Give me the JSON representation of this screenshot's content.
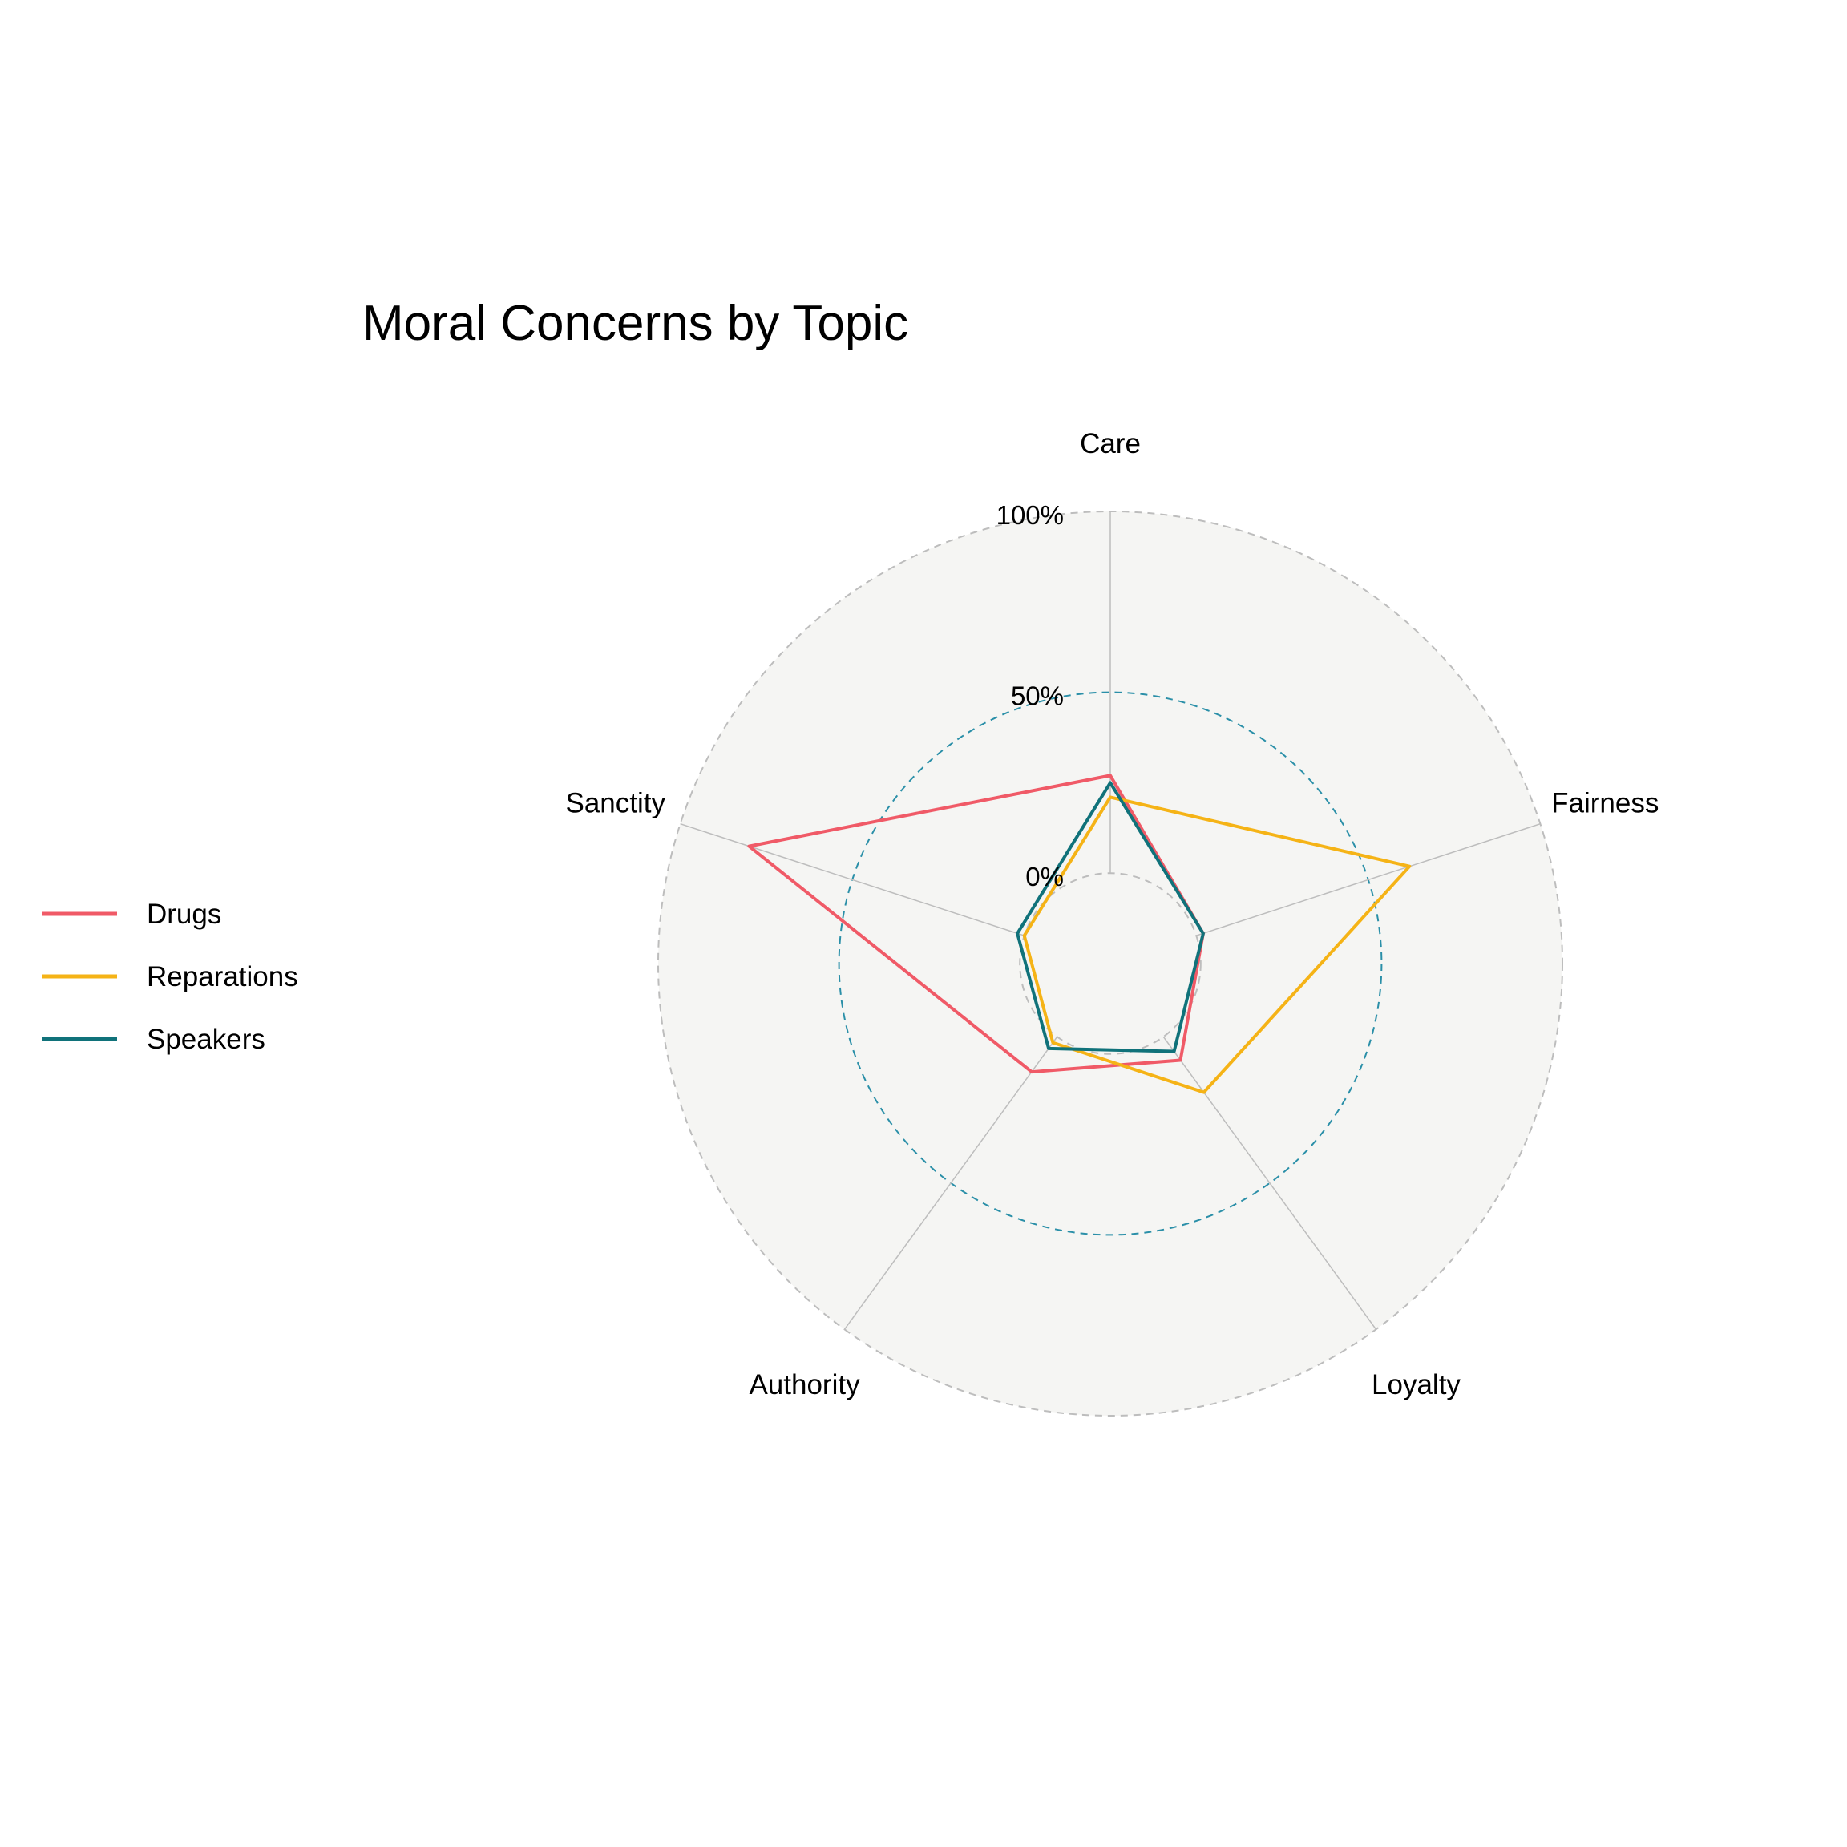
{
  "chart_data": {
    "type": "radar",
    "title": "Moral Concerns by Topic",
    "axes": [
      "Care",
      "Fairness",
      "Loyalty",
      "Authority",
      "Sanctity"
    ],
    "radial_ticks": [
      "0%",
      "50%",
      "100%"
    ],
    "ylim": [
      -0.25,
      1.0
    ],
    "grid": true,
    "legend_position": "left",
    "series": [
      {
        "name": "Drugs",
        "color": "#F05A67",
        "values": [
          0.27,
          0.02,
          0.08,
          0.12,
          0.8
        ]
      },
      {
        "name": "Reparations",
        "color": "#F5B316",
        "values": [
          0.21,
          0.62,
          0.19,
          0.02,
          0.0
        ]
      },
      {
        "name": "Speakers",
        "color": "#10727A",
        "values": [
          0.25,
          0.02,
          0.05,
          0.04,
          0.02
        ]
      }
    ],
    "colors": {
      "panel": "#F5F5F3",
      "grid": "#BDBDBD",
      "mid_ring": "#2A8FA8"
    }
  }
}
